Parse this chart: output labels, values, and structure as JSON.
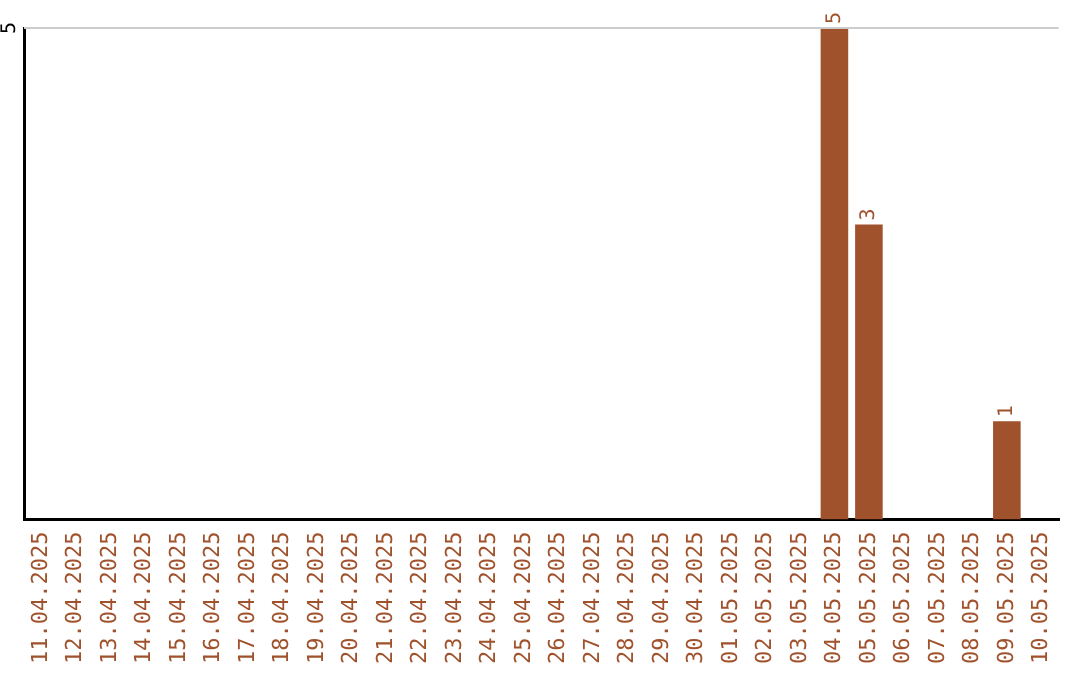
{
  "chart_data": {
    "type": "bar",
    "categories": [
      "11.04.2025",
      "12.04.2025",
      "13.04.2025",
      "14.04.2025",
      "15.04.2025",
      "16.04.2025",
      "17.04.2025",
      "18.04.2025",
      "19.04.2025",
      "20.04.2025",
      "21.04.2025",
      "22.04.2025",
      "23.04.2025",
      "24.04.2025",
      "25.04.2025",
      "26.04.2025",
      "27.04.2025",
      "28.04.2025",
      "29.04.2025",
      "30.04.2025",
      "01.05.2025",
      "02.05.2025",
      "03.05.2025",
      "04.05.2025",
      "05.05.2025",
      "06.05.2025",
      "07.05.2025",
      "08.05.2025",
      "09.05.2025",
      "10.05.2025"
    ],
    "values": [
      null,
      null,
      null,
      null,
      null,
      null,
      null,
      null,
      null,
      null,
      null,
      null,
      null,
      null,
      null,
      null,
      null,
      null,
      null,
      null,
      null,
      null,
      null,
      5,
      3,
      null,
      null,
      null,
      1,
      null
    ],
    "ylim": [
      0,
      5
    ],
    "value_labels": [
      null,
      null,
      null,
      null,
      null,
      null,
      null,
      null,
      null,
      null,
      null,
      null,
      null,
      null,
      null,
      null,
      null,
      null,
      null,
      null,
      null,
      null,
      null,
      "5",
      "3",
      null,
      null,
      null,
      "1",
      null
    ],
    "color": "#a0522d",
    "ref_lines": [
      {
        "axis": "y",
        "value": 5,
        "label": "5",
        "color": "#cccccc"
      }
    ],
    "legend": false
  }
}
